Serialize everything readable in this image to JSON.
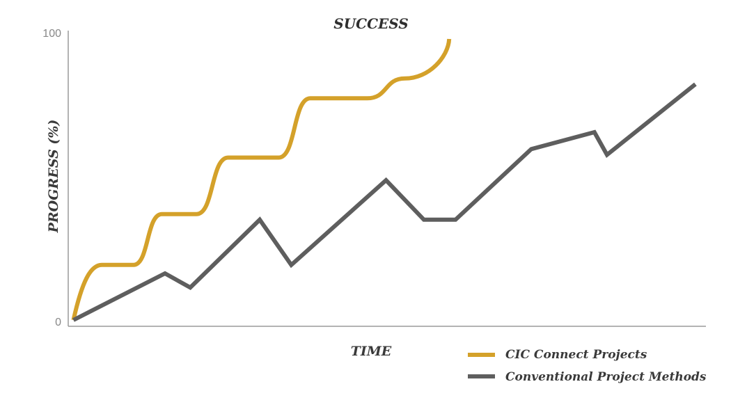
{
  "chart_data": {
    "type": "line",
    "title": "SUCCESS",
    "xlabel": "TIME",
    "ylabel": "PROGRESS (%)",
    "y_ticks": [
      "0",
      "100"
    ],
    "ylim": [
      0,
      100
    ],
    "xlim": [
      0,
      100
    ],
    "grid": false,
    "legend_position": "bottom-right",
    "series": [
      {
        "name": "CIC Connect Projects",
        "color": "#d4a12a",
        "curve": "smooth-steps",
        "x": [
          0.5,
          5,
          10,
          14.5,
          20,
          25,
          33,
          38,
          47,
          53,
          60
        ],
        "y": [
          0.5,
          20,
          20,
          38,
          38,
          58,
          58,
          79,
          79,
          86,
          100
        ]
      },
      {
        "name": "Conventional Project Methods",
        "color": "#5e5e5e",
        "curve": "linear",
        "x": [
          0.5,
          15,
          19,
          30,
          35,
          50,
          56,
          61,
          73,
          83,
          85,
          99
        ],
        "y": [
          0.5,
          17,
          12,
          36,
          20,
          50,
          36,
          36,
          61,
          67,
          59,
          84
        ]
      }
    ]
  }
}
